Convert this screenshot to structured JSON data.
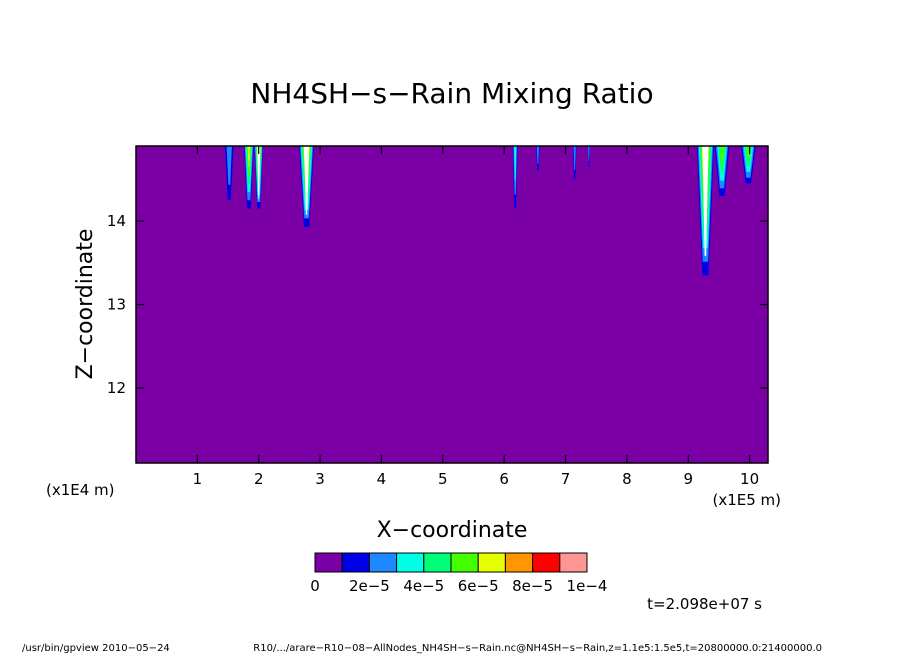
{
  "chart_data": {
    "type": "heatmap",
    "title": "NH4SH−s−Rain Mixing Ratio",
    "xlabel": "X−coordinate",
    "ylabel": "Z−coordinate",
    "x_unit_label": "(x1E5 m)",
    "y_unit_label": "(x1E4 m)",
    "x_ticks": [
      1,
      2,
      3,
      4,
      5,
      6,
      7,
      8,
      9,
      10
    ],
    "y_ticks": [
      12,
      13,
      14
    ],
    "xlim": [
      0,
      10.3
    ],
    "ylim": [
      11.1,
      14.9
    ],
    "background_color": "#7a00a6",
    "colorbar": {
      "colors": [
        "#7a00a6",
        "#0000e8",
        "#1e88ff",
        "#00ffe6",
        "#00ff78",
        "#44ff00",
        "#e6ff00",
        "#ff9600",
        "#ff0000",
        "#ff9696"
      ],
      "labels": [
        "0",
        "2e−5",
        "4e−5",
        "6e−5",
        "8e−5",
        "1e−4"
      ]
    },
    "time_label": "t=2.098e+07 s",
    "features": [
      {
        "x_center": 1.52,
        "top_z": 14.9,
        "bottom_z": 14.25,
        "halfwidth": 0.07,
        "levels": 2
      },
      {
        "x_center": 1.84,
        "top_z": 14.9,
        "bottom_z": 14.15,
        "halfwidth": 0.08,
        "levels": 6
      },
      {
        "x_center": 2.0,
        "top_z": 14.9,
        "bottom_z": 14.15,
        "halfwidth": 0.07,
        "levels": 8
      },
      {
        "x_center": 2.78,
        "top_z": 14.9,
        "bottom_z": 13.93,
        "halfwidth": 0.12,
        "levels": 8
      },
      {
        "x_center": 6.18,
        "top_z": 14.9,
        "bottom_z": 14.15,
        "halfwidth": 0.04,
        "levels": 3
      },
      {
        "x_center": 6.55,
        "top_z": 14.9,
        "bottom_z": 14.6,
        "halfwidth": 0.03,
        "levels": 2
      },
      {
        "x_center": 7.15,
        "top_z": 14.9,
        "bottom_z": 14.5,
        "halfwidth": 0.03,
        "levels": 2
      },
      {
        "x_center": 7.38,
        "top_z": 14.9,
        "bottom_z": 14.65,
        "halfwidth": 0.02,
        "levels": 2
      },
      {
        "x_center": 9.28,
        "top_z": 14.9,
        "bottom_z": 13.35,
        "halfwidth": 0.14,
        "levels": 8
      },
      {
        "x_center": 9.55,
        "top_z": 14.9,
        "bottom_z": 14.3,
        "halfwidth": 0.12,
        "levels": 5
      },
      {
        "x_center": 9.98,
        "top_z": 14.9,
        "bottom_z": 14.45,
        "halfwidth": 0.12,
        "levels": 5
      }
    ]
  },
  "footer": {
    "left": "/usr/bin/gpview   2010−05−24",
    "right": "R10/.../arare−R10−08−AllNodes_NH4SH−s−Rain.nc@NH4SH−s−Rain,z=1.1e5:1.5e5,t=20800000.0:21400000.0"
  }
}
